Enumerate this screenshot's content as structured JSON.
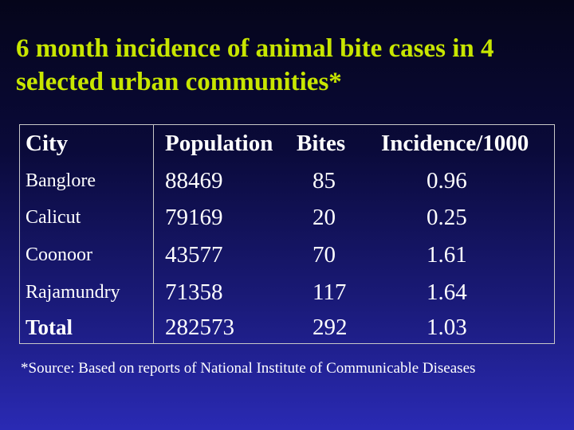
{
  "title": {
    "line1": "6 month incidence of animal bite cases in 4",
    "line2": "selected urban communities*"
  },
  "table": {
    "headers": {
      "city": "City",
      "population": "Population",
      "bites": "Bites",
      "incidence": "Incidence/1000"
    },
    "rows": [
      {
        "city": "Banglore",
        "population": "88469",
        "bites": "85",
        "incidence": "0.96"
      },
      {
        "city": "Calicut",
        "population": "79169",
        "bites": "20",
        "incidence": "0.25"
      },
      {
        "city": "Coonoor",
        "population": "43577",
        "bites": "70",
        "incidence": "1.61"
      },
      {
        "city": "Rajamundry",
        "population": "71358",
        "bites": "117",
        "incidence": "1.64"
      }
    ],
    "total": {
      "city": "Total",
      "population": "282573",
      "bites": "292",
      "incidence": "1.03"
    }
  },
  "source": "*Source: Based on reports of National Institute of Communicable Diseases",
  "colors": {
    "title": "#c8e600",
    "text": "#ffffff",
    "background_top": "#05051a",
    "background_bottom": "#2a2ab4"
  }
}
